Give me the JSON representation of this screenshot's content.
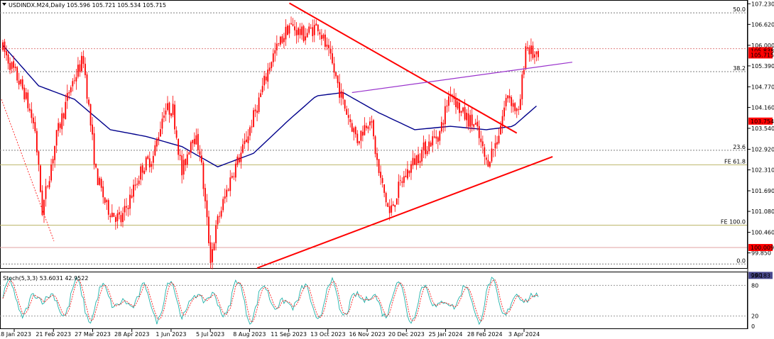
{
  "header": {
    "symbol_line": "USDINDX.M24,Daily  105.596 105.721 105.534 105.715"
  },
  "indicator": {
    "label": "Stoch(5,3,3) 53.6031 42.9522",
    "k_color": "#20b2aa",
    "d_color": "#ff0000",
    "levels": [
      80,
      20
    ],
    "scale_labels": [
      "100",
      "80",
      "20",
      "0"
    ]
  },
  "colors": {
    "candle": "#ff0000",
    "ma": "#00008b",
    "channel": "#9932cc",
    "trendline": "#ff0000",
    "fib": "#7f7f7f",
    "fe": "#bdb76b",
    "support": "#e0a0a0",
    "price_tag": "#ff0000",
    "low_tag": "#4b4b8f"
  },
  "chart_data": {
    "type": "candlestick",
    "timeframe": "Daily",
    "symbol": "USDINDX.M24",
    "ohlc_last": {
      "open": 105.596,
      "high": 105.721,
      "low": 105.534,
      "close": 105.715
    },
    "ylim": [
      99.4,
      107.3
    ],
    "y_ticks": [
      107.23,
      106.62,
      106.0,
      105.39,
      104.77,
      104.16,
      103.54,
      102.92,
      102.31,
      101.69,
      101.08,
      100.46,
      99.85
    ],
    "y_tick_labels": [
      "107.230",
      "106.620",
      "106.000",
      "105.390",
      "104.770",
      "104.160",
      "103.540",
      "102.920",
      "102.310",
      "101.690",
      "101.080",
      "100.460",
      "99.850"
    ],
    "x_tick_labels": [
      "18 Jan 2023",
      "21 Feb 2023",
      "27 Mar 2023",
      "28 Apr 2023",
      "1 Jun 2023",
      "5 Jul 2023",
      "8 Aug 2023",
      "11 Sep 2023",
      "13 Oct 2023",
      "16 Nov 2023",
      "20 Dec 2023",
      "25 Jan 2024",
      "28 Feb 2024",
      "3 Apr 2024"
    ],
    "price_tags": [
      {
        "value": 105.838,
        "label": "105.838"
      },
      {
        "value": 105.715,
        "label": "105.715"
      },
      {
        "value": 103.754,
        "label": "103.754"
      },
      {
        "value": 100.009,
        "label": "100.009"
      },
      {
        "value": 99.183,
        "label": "99.183"
      }
    ],
    "levels": [
      {
        "value": 106.96,
        "label": "50.0",
        "kind": "fib"
      },
      {
        "value": 105.22,
        "label": "38.2",
        "kind": "fib"
      },
      {
        "value": 102.89,
        "label": "23.6",
        "kind": "fib"
      },
      {
        "value": 99.52,
        "label": "0.0",
        "kind": "fib"
      },
      {
        "value": 102.46,
        "label": "FE 61.8",
        "kind": "fe"
      },
      {
        "value": 100.67,
        "label": "FE 100.0",
        "kind": "fe"
      },
      {
        "value": 100.009,
        "label": "",
        "kind": "support"
      },
      {
        "value": 105.9,
        "label": "",
        "kind": "resistance"
      }
    ],
    "anchors": [
      {
        "t": 0,
        "v": 105.9
      },
      {
        "t": 12,
        "v": 104.6
      },
      {
        "t": 18,
        "v": 103.5
      },
      {
        "t": 22,
        "v": 101.1
      },
      {
        "t": 30,
        "v": 103.3
      },
      {
        "t": 38,
        "v": 104.8
      },
      {
        "t": 45,
        "v": 105.6
      },
      {
        "t": 52,
        "v": 102.2
      },
      {
        "t": 58,
        "v": 101.2
      },
      {
        "t": 66,
        "v": 100.8
      },
      {
        "t": 72,
        "v": 101.6
      },
      {
        "t": 78,
        "v": 102.4
      },
      {
        "t": 84,
        "v": 102.7
      },
      {
        "t": 90,
        "v": 104.1
      },
      {
        "t": 95,
        "v": 104.1
      },
      {
        "t": 100,
        "v": 102.2
      },
      {
        "t": 106,
        "v": 103.4
      },
      {
        "t": 110,
        "v": 102.9
      },
      {
        "t": 116,
        "v": 99.7
      },
      {
        "t": 120,
        "v": 100.8
      },
      {
        "t": 128,
        "v": 102.2
      },
      {
        "t": 134,
        "v": 102.9
      },
      {
        "t": 142,
        "v": 104.2
      },
      {
        "t": 150,
        "v": 105.6
      },
      {
        "t": 160,
        "v": 106.6
      },
      {
        "t": 168,
        "v": 106.3
      },
      {
        "t": 176,
        "v": 106.6
      },
      {
        "t": 184,
        "v": 105.4
      },
      {
        "t": 190,
        "v": 104.3
      },
      {
        "t": 198,
        "v": 103.2
      },
      {
        "t": 205,
        "v": 103.9
      },
      {
        "t": 210,
        "v": 102.2
      },
      {
        "t": 216,
        "v": 101.0
      },
      {
        "t": 222,
        "v": 101.9
      },
      {
        "t": 230,
        "v": 102.6
      },
      {
        "t": 238,
        "v": 103.1
      },
      {
        "t": 244,
        "v": 103.4
      },
      {
        "t": 250,
        "v": 104.7
      },
      {
        "t": 256,
        "v": 104.0
      },
      {
        "t": 264,
        "v": 103.6
      },
      {
        "t": 270,
        "v": 102.5
      },
      {
        "t": 276,
        "v": 103.2
      },
      {
        "t": 282,
        "v": 104.6
      },
      {
        "t": 288,
        "v": 103.9
      },
      {
        "t": 292,
        "v": 106.0
      },
      {
        "t": 298,
        "v": 105.6
      }
    ],
    "moving_average": [
      {
        "t": 0,
        "v": 106.0
      },
      {
        "t": 20,
        "v": 104.8
      },
      {
        "t": 40,
        "v": 104.4
      },
      {
        "t": 60,
        "v": 103.5
      },
      {
        "t": 80,
        "v": 103.3
      },
      {
        "t": 100,
        "v": 103.0
      },
      {
        "t": 120,
        "v": 102.4
      },
      {
        "t": 140,
        "v": 102.8
      },
      {
        "t": 160,
        "v": 103.8
      },
      {
        "t": 175,
        "v": 104.5
      },
      {
        "t": 190,
        "v": 104.6
      },
      {
        "t": 210,
        "v": 104.0
      },
      {
        "t": 230,
        "v": 103.5
      },
      {
        "t": 250,
        "v": 103.6
      },
      {
        "t": 270,
        "v": 103.5
      },
      {
        "t": 285,
        "v": 103.6
      },
      {
        "t": 298,
        "v": 104.2
      }
    ],
    "trendlines": [
      {
        "name": "resistance",
        "from": {
          "t": 160,
          "v": 107.25
        },
        "to": {
          "t": 287,
          "v": 103.4
        }
      },
      {
        "name": "support",
        "from": {
          "t": 142,
          "v": 99.4
        },
        "to": {
          "t": 307,
          "v": 102.7
        }
      },
      {
        "name": "channel",
        "from": {
          "t": 195,
          "v": 104.6
        },
        "to": {
          "t": 318,
          "v": 105.5
        }
      }
    ],
    "stoch": {
      "k": 53.6031,
      "d": 42.9522
    }
  }
}
